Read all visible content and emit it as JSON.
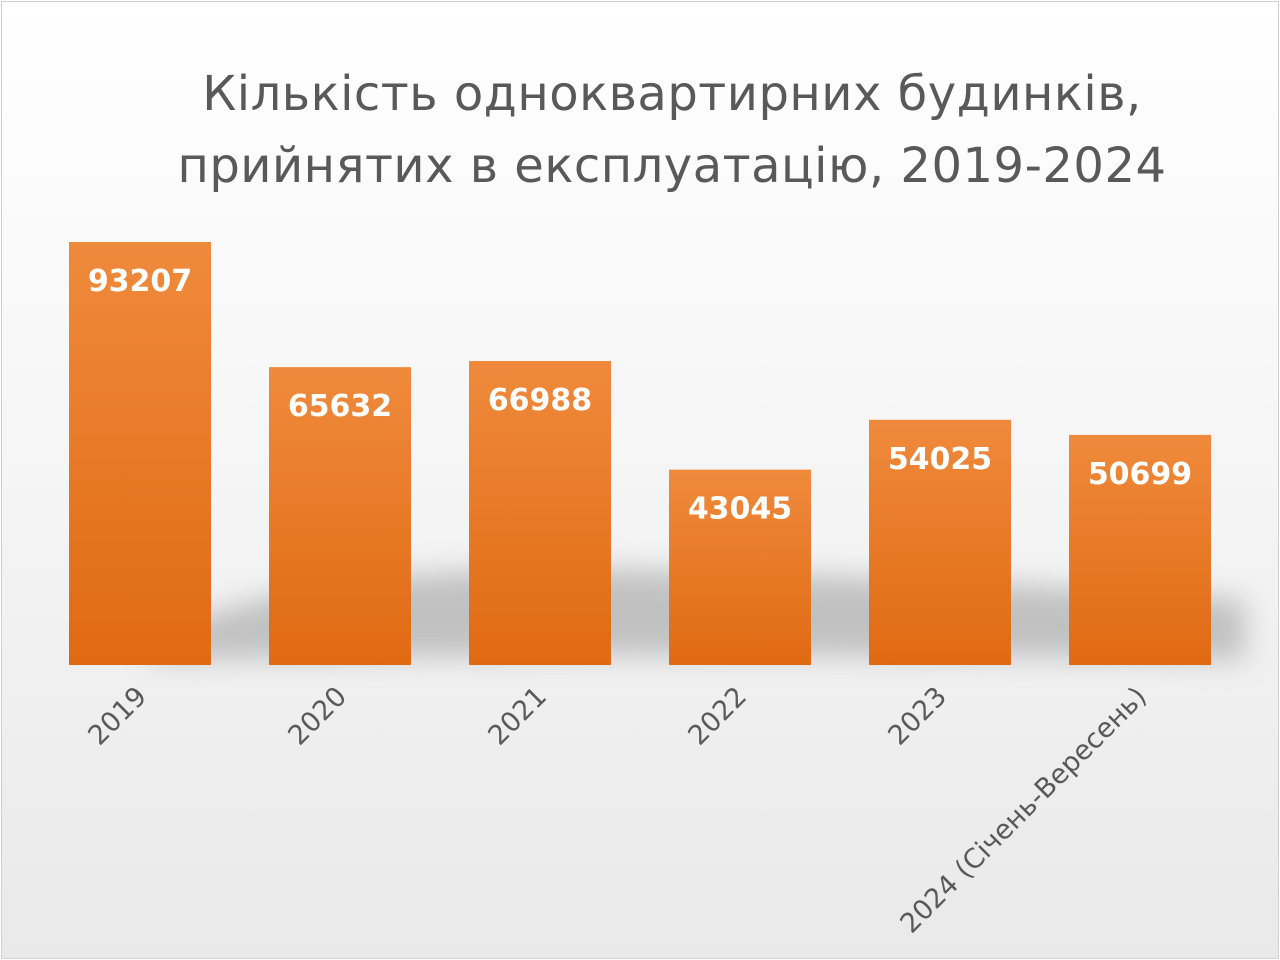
{
  "chart_data": {
    "type": "bar",
    "title_lines": [
      "Кількість одноквартирних будинків,",
      "прийнятих в експлуатацію, 2019-2024"
    ],
    "categories": [
      "2019",
      "2020",
      "2021",
      "2022",
      "2023",
      "2024 (Січень-Вересень)"
    ],
    "values": [
      93207,
      65632,
      66988,
      43045,
      54025,
      50699
    ],
    "data_labels": [
      "93207",
      "65632",
      "66988",
      "43045",
      "54025",
      "50699"
    ],
    "xlabel": "",
    "ylabel": "",
    "ylim": [
      0,
      93207
    ],
    "grid": false,
    "legend": "none",
    "colors": {
      "bar_top": "#ef8a3c",
      "bar_bottom": "#e06a12",
      "label": "#ffffff",
      "title": "#595959",
      "axis_text": "#595959"
    }
  }
}
